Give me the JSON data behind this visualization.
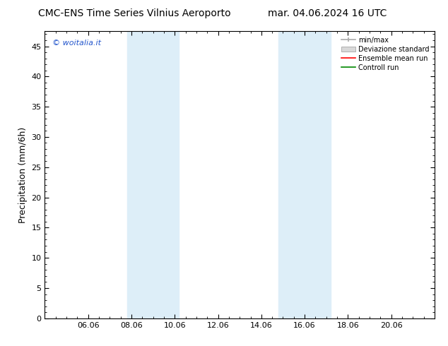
{
  "title_left": "CMC-ENS Time Series Vilnius Aeroporto",
  "title_right": "mar. 04.06.2024 16 UTC",
  "ylabel": "Precipitation (mm/6h)",
  "watermark": "© woitalia.it",
  "ylim": [
    0,
    47.5
  ],
  "yticks": [
    0,
    5,
    10,
    15,
    20,
    25,
    30,
    35,
    40,
    45
  ],
  "xtick_labels": [
    "06.06",
    "08.06",
    "10.06",
    "12.06",
    "14.06",
    "16.06",
    "18.06",
    "20.06"
  ],
  "xtick_positions": [
    2,
    4,
    6,
    8,
    10,
    12,
    14,
    16
  ],
  "xmin": 0,
  "xmax": 18,
  "shade_bands": [
    {
      "xmin": 3.8,
      "xmax": 4.2,
      "color": "#ddeef8"
    },
    {
      "xmin": 4.2,
      "xmax": 6.2,
      "color": "#ddeef8"
    },
    {
      "xmin": 10.8,
      "xmax": 11.2,
      "color": "#ddeef8"
    },
    {
      "xmin": 11.2,
      "xmax": 13.2,
      "color": "#ddeef8"
    }
  ],
  "shade_bands2": [
    {
      "xmin": 3.8,
      "xmax": 6.2,
      "color": "#ddeef8"
    },
    {
      "xmin": 10.8,
      "xmax": 13.2,
      "color": "#ddeef8"
    }
  ],
  "legend_labels": [
    "min/max",
    "Deviazione standard",
    "Ensemble mean run",
    "Controll run"
  ],
  "legend_colors": [
    "#aaaaaa",
    "#cccccc",
    "#ff0000",
    "#008800"
  ],
  "bg_color": "#ffffff",
  "plot_bg_color": "#ffffff",
  "title_fontsize": 10,
  "tick_fontsize": 8,
  "ylabel_fontsize": 9
}
